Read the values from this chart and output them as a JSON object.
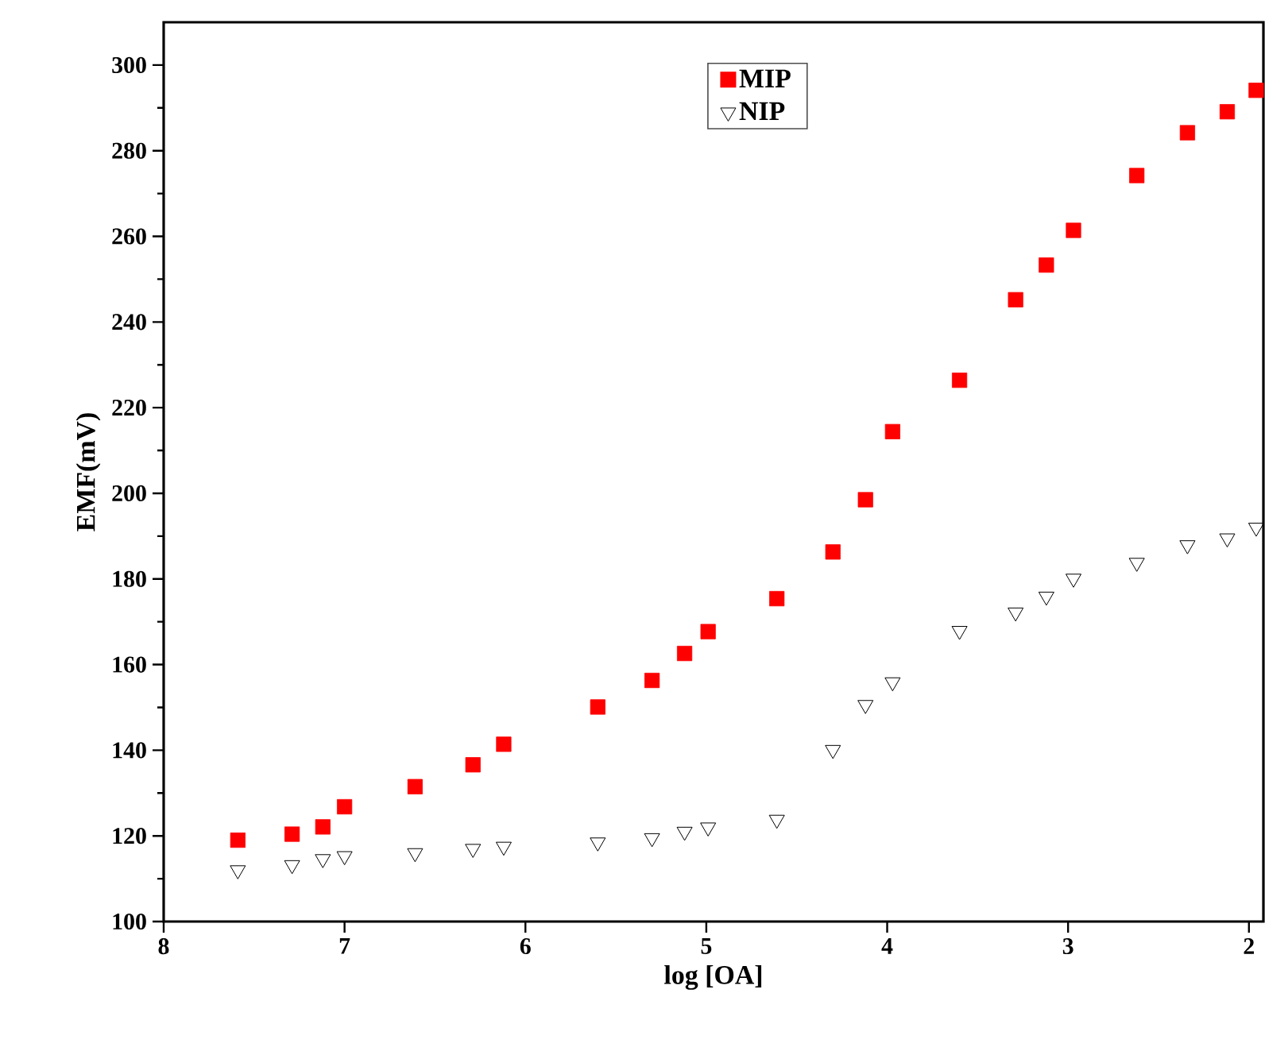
{
  "chart_data": {
    "type": "scatter",
    "xlabel": "log [OA]",
    "ylabel": "EMF(mV)",
    "xlim": [
      8,
      1.92
    ],
    "xticks": [
      8,
      7,
      6,
      5,
      4,
      3,
      2
    ],
    "ylim": [
      100,
      310
    ],
    "yticks": [
      100,
      120,
      140,
      160,
      180,
      200,
      220,
      240,
      260,
      280,
      300
    ],
    "legend": "top",
    "grid": false,
    "series": [
      {
        "name": "MIP",
        "color": "#ff0000",
        "marker": "square",
        "x": [
          7.59,
          7.29,
          7.12,
          7.0,
          6.61,
          6.29,
          6.12,
          5.6,
          5.3,
          5.12,
          4.99,
          4.61,
          4.3,
          4.12,
          3.97,
          3.6,
          3.29,
          3.12,
          2.97,
          2.62,
          2.34,
          2.12,
          1.96
        ],
        "values": [
          119,
          120.4,
          122.1,
          126.8,
          131.5,
          136.6,
          141.4,
          150.1,
          156.3,
          162.6,
          167.7,
          175.4,
          186.3,
          198.5,
          214.4,
          226.4,
          245.2,
          253.3,
          261.4,
          274.2,
          284.2,
          289.1,
          294.1
        ]
      },
      {
        "name": "NIP",
        "color": "#000000",
        "marker": "triangle",
        "x": [
          7.59,
          7.29,
          7.12,
          7.0,
          6.61,
          6.29,
          6.12,
          5.6,
          5.3,
          5.12,
          4.99,
          4.61,
          4.3,
          4.12,
          3.97,
          3.6,
          3.29,
          3.12,
          2.97,
          2.62,
          2.34,
          2.12,
          1.96
        ],
        "values": [
          112,
          113.2,
          114.6,
          115.3,
          116,
          117,
          117.5,
          118.5,
          119.5,
          121,
          122,
          123.8,
          140.1,
          150.6,
          155.9,
          167.9,
          172.2,
          175.9,
          180.1,
          183.8,
          187.9,
          189.5,
          192
        ]
      }
    ]
  }
}
